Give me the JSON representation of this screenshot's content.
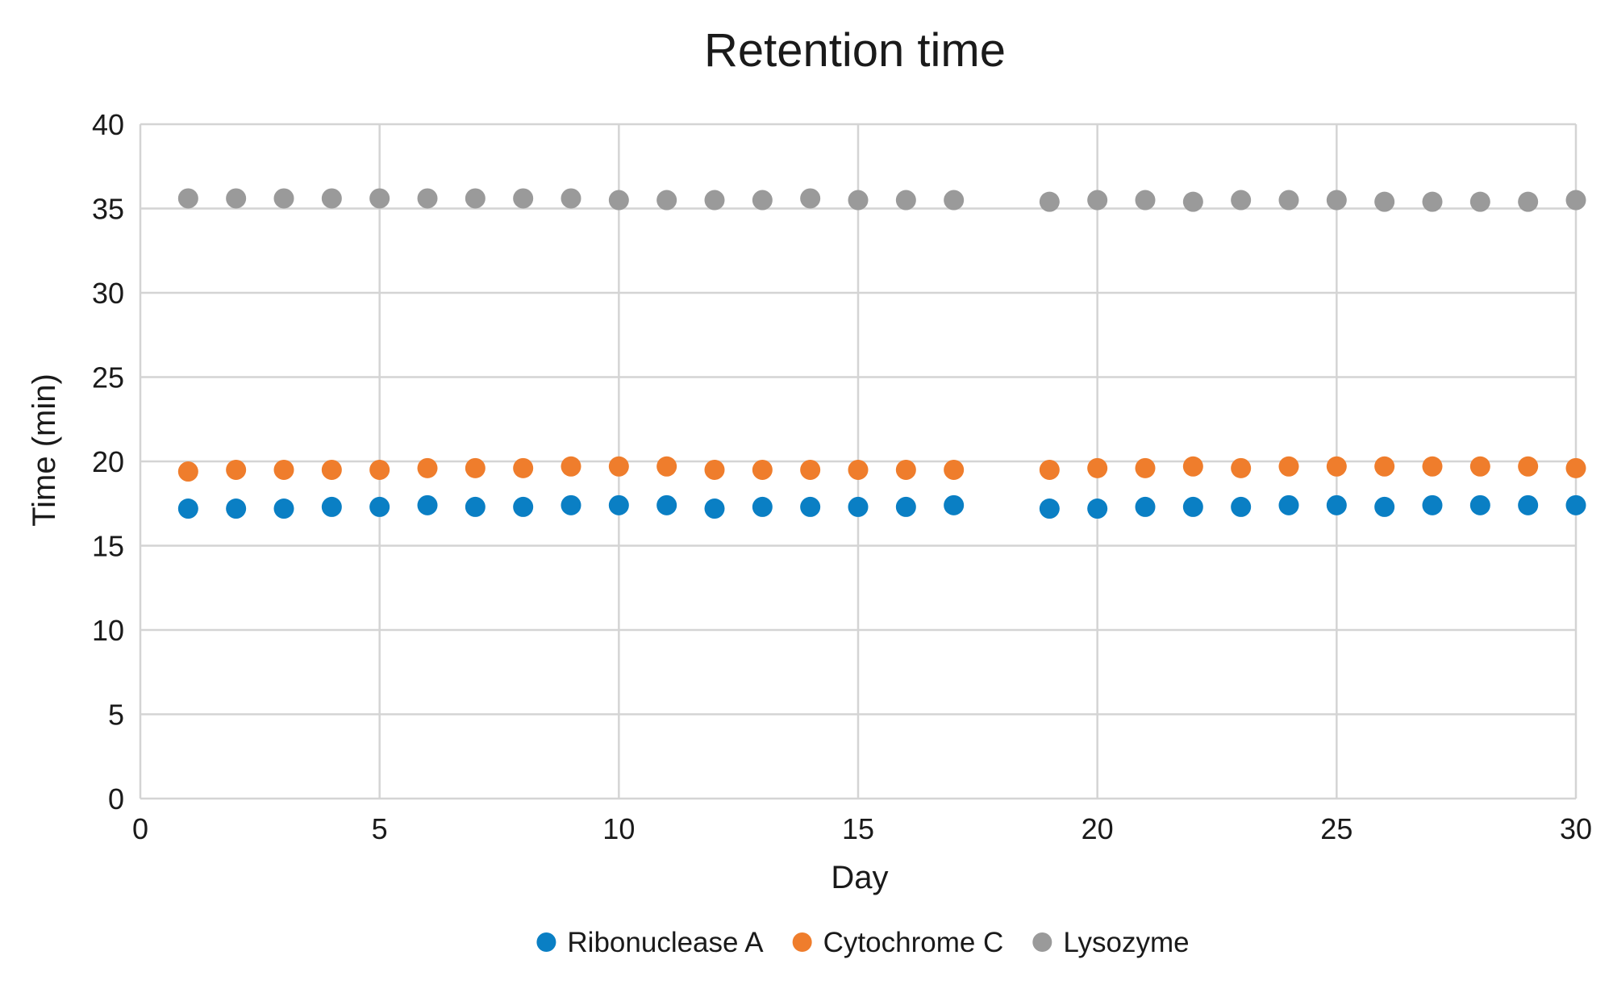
{
  "chart_data": {
    "type": "scatter",
    "title": "Retention time",
    "xlabel": "Day",
    "ylabel": "Time (min)",
    "xlim": [
      0,
      30
    ],
    "ylim": [
      0,
      40
    ],
    "x_ticks": [
      0,
      5,
      10,
      15,
      20,
      25,
      30
    ],
    "y_ticks": [
      0,
      5,
      10,
      15,
      20,
      25,
      30,
      35,
      40
    ],
    "grid": true,
    "legend_position": "bottom",
    "x": [
      1,
      2,
      3,
      4,
      5,
      6,
      7,
      8,
      9,
      10,
      11,
      12,
      13,
      14,
      15,
      16,
      17,
      19,
      20,
      21,
      22,
      23,
      24,
      25,
      26,
      27,
      28,
      29,
      30
    ],
    "series": [
      {
        "name": "Ribonuclease A",
        "color": "#0A7FC4",
        "values": [
          17.2,
          17.2,
          17.2,
          17.3,
          17.3,
          17.4,
          17.3,
          17.3,
          17.4,
          17.4,
          17.4,
          17.2,
          17.3,
          17.3,
          17.3,
          17.3,
          17.4,
          17.2,
          17.2,
          17.3,
          17.3,
          17.3,
          17.4,
          17.4,
          17.3,
          17.4,
          17.4,
          17.4,
          17.4
        ]
      },
      {
        "name": "Cytochrome C",
        "color": "#EF7D2C",
        "values": [
          19.4,
          19.5,
          19.5,
          19.5,
          19.5,
          19.6,
          19.6,
          19.6,
          19.7,
          19.7,
          19.7,
          19.5,
          19.5,
          19.5,
          19.5,
          19.5,
          19.5,
          19.5,
          19.6,
          19.6,
          19.7,
          19.6,
          19.7,
          19.7,
          19.7,
          19.7,
          19.7,
          19.7,
          19.6
        ]
      },
      {
        "name": "Lysozyme",
        "color": "#9A9A9A",
        "values": [
          35.6,
          35.6,
          35.6,
          35.6,
          35.6,
          35.6,
          35.6,
          35.6,
          35.6,
          35.5,
          35.5,
          35.5,
          35.5,
          35.6,
          35.5,
          35.5,
          35.5,
          35.4,
          35.5,
          35.5,
          35.4,
          35.5,
          35.5,
          35.5,
          35.4,
          35.4,
          35.4,
          35.4,
          35.5
        ]
      }
    ]
  }
}
